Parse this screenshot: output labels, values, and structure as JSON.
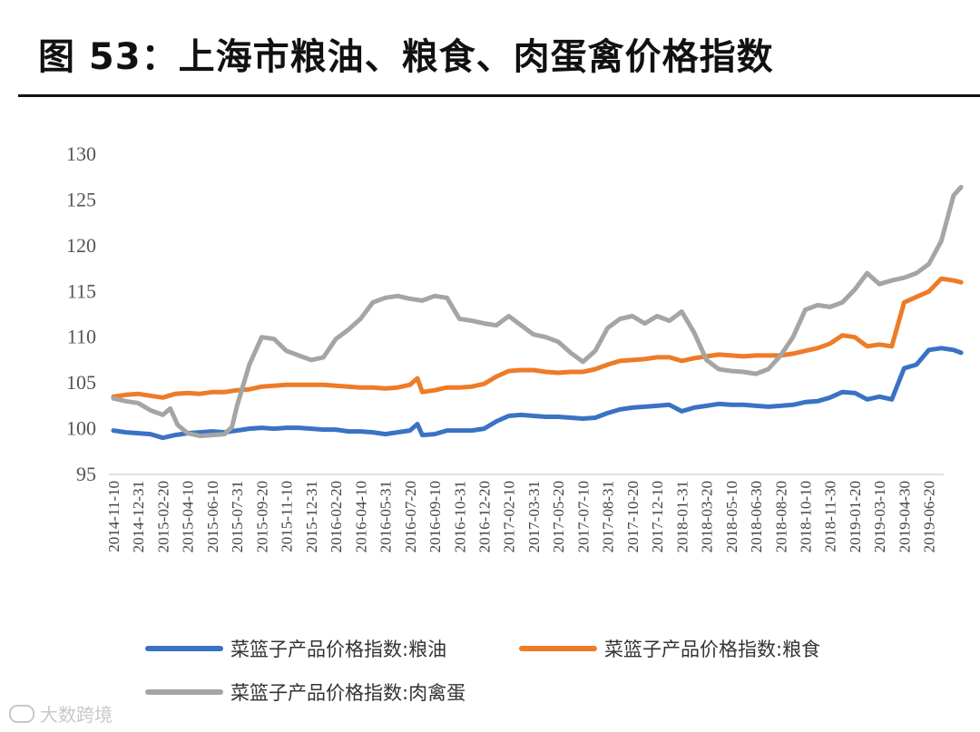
{
  "header": {
    "title": "图 53：上海市粮油、粮食、肉蛋禽价格指数"
  },
  "watermark": {
    "text": "大数跨境"
  },
  "chart_data": {
    "type": "line",
    "ylim": [
      95,
      130
    ],
    "yticks": [
      95,
      100,
      105,
      110,
      115,
      120,
      125,
      130
    ],
    "grid": false,
    "legend_position": "bottom",
    "x_tick_labels": [
      "2014-11-10",
      "2014-12-31",
      "2015-02-20",
      "2015-04-10",
      "2015-06-10",
      "2015-07-31",
      "2015-09-20",
      "2015-11-10",
      "2015-12-31",
      "2016-02-20",
      "2016-04-10",
      "2016-05-31",
      "2016-07-20",
      "2016-09-10",
      "2016-10-31",
      "2016-12-20",
      "2017-02-10",
      "2017-03-31",
      "2017-05-20",
      "2017-07-10",
      "2017-08-31",
      "2017-10-20",
      "2017-12-10",
      "2018-01-31",
      "2018-03-20",
      "2018-05-10",
      "2018-06-30",
      "2018-08-20",
      "2018-10-10",
      "2018-11-30",
      "2019-01-20",
      "2019-03-10",
      "2019-04-30",
      "2019-06-20"
    ],
    "series": [
      {
        "name": "菜篮子产品价格指数:粮油",
        "color": "#3a72c4",
        "points": [
          [
            0,
            99.8
          ],
          [
            0.5,
            99.6
          ],
          [
            1,
            99.5
          ],
          [
            1.5,
            99.4
          ],
          [
            2,
            99.0
          ],
          [
            2.5,
            99.3
          ],
          [
            3,
            99.5
          ],
          [
            3.5,
            99.6
          ],
          [
            4,
            99.7
          ],
          [
            4.5,
            99.6
          ],
          [
            5,
            99.8
          ],
          [
            5.5,
            100.0
          ],
          [
            6,
            100.1
          ],
          [
            6.5,
            100.0
          ],
          [
            7,
            100.1
          ],
          [
            7.5,
            100.1
          ],
          [
            8,
            100.0
          ],
          [
            8.5,
            99.9
          ],
          [
            9,
            99.9
          ],
          [
            9.5,
            99.7
          ],
          [
            10,
            99.7
          ],
          [
            10.5,
            99.6
          ],
          [
            11,
            99.4
          ],
          [
            11.5,
            99.6
          ],
          [
            12,
            99.8
          ],
          [
            12.3,
            100.5
          ],
          [
            12.5,
            99.3
          ],
          [
            13,
            99.4
          ],
          [
            13.5,
            99.8
          ],
          [
            14,
            99.8
          ],
          [
            14.5,
            99.8
          ],
          [
            15,
            100.0
          ],
          [
            15.5,
            100.8
          ],
          [
            16,
            101.4
          ],
          [
            16.5,
            101.5
          ],
          [
            17,
            101.4
          ],
          [
            17.5,
            101.3
          ],
          [
            18,
            101.3
          ],
          [
            18.5,
            101.2
          ],
          [
            19,
            101.1
          ],
          [
            19.5,
            101.2
          ],
          [
            20,
            101.7
          ],
          [
            20.5,
            102.1
          ],
          [
            21,
            102.3
          ],
          [
            21.5,
            102.4
          ],
          [
            22,
            102.5
          ],
          [
            22.5,
            102.6
          ],
          [
            23,
            101.9
          ],
          [
            23.5,
            102.3
          ],
          [
            24,
            102.5
          ],
          [
            24.5,
            102.7
          ],
          [
            25,
            102.6
          ],
          [
            25.5,
            102.6
          ],
          [
            26,
            102.5
          ],
          [
            26.5,
            102.4
          ],
          [
            27,
            102.5
          ],
          [
            27.5,
            102.6
          ],
          [
            28,
            102.9
          ],
          [
            28.5,
            103.0
          ],
          [
            29,
            103.4
          ],
          [
            29.5,
            104.0
          ],
          [
            30,
            103.9
          ],
          [
            30.5,
            103.2
          ],
          [
            31,
            103.5
          ],
          [
            31.5,
            103.2
          ],
          [
            32,
            106.6
          ],
          [
            32.5,
            107.0
          ],
          [
            33,
            108.6
          ],
          [
            33.5,
            108.8
          ],
          [
            34,
            108.6
          ],
          [
            34.3,
            108.3
          ]
        ]
      },
      {
        "name": "菜篮子产品价格指数:粮食",
        "color": "#ee7b28",
        "points": [
          [
            0,
            103.5
          ],
          [
            0.5,
            103.7
          ],
          [
            1,
            103.8
          ],
          [
            1.5,
            103.6
          ],
          [
            2,
            103.4
          ],
          [
            2.5,
            103.8
          ],
          [
            3,
            103.9
          ],
          [
            3.5,
            103.8
          ],
          [
            4,
            104.0
          ],
          [
            4.5,
            104.0
          ],
          [
            5,
            104.2
          ],
          [
            5.5,
            104.3
          ],
          [
            6,
            104.6
          ],
          [
            6.5,
            104.7
          ],
          [
            7,
            104.8
          ],
          [
            7.5,
            104.8
          ],
          [
            8,
            104.8
          ],
          [
            8.5,
            104.8
          ],
          [
            9,
            104.7
          ],
          [
            9.5,
            104.6
          ],
          [
            10,
            104.5
          ],
          [
            10.5,
            104.5
          ],
          [
            11,
            104.4
          ],
          [
            11.5,
            104.5
          ],
          [
            12,
            104.8
          ],
          [
            12.3,
            105.5
          ],
          [
            12.5,
            104.0
          ],
          [
            13,
            104.2
          ],
          [
            13.5,
            104.5
          ],
          [
            14,
            104.5
          ],
          [
            14.5,
            104.6
          ],
          [
            15,
            104.9
          ],
          [
            15.5,
            105.7
          ],
          [
            16,
            106.3
          ],
          [
            16.5,
            106.4
          ],
          [
            17,
            106.4
          ],
          [
            17.5,
            106.2
          ],
          [
            18,
            106.1
          ],
          [
            18.5,
            106.2
          ],
          [
            19,
            106.2
          ],
          [
            19.5,
            106.5
          ],
          [
            20,
            107.0
          ],
          [
            20.5,
            107.4
          ],
          [
            21,
            107.5
          ],
          [
            21.5,
            107.6
          ],
          [
            22,
            107.8
          ],
          [
            22.5,
            107.8
          ],
          [
            23,
            107.4
          ],
          [
            23.5,
            107.7
          ],
          [
            24,
            107.9
          ],
          [
            24.5,
            108.1
          ],
          [
            25,
            108.0
          ],
          [
            25.5,
            107.9
          ],
          [
            26,
            108.0
          ],
          [
            26.5,
            108.0
          ],
          [
            27,
            108.0
          ],
          [
            27.5,
            108.2
          ],
          [
            28,
            108.5
          ],
          [
            28.5,
            108.8
          ],
          [
            29,
            109.3
          ],
          [
            29.5,
            110.2
          ],
          [
            30,
            110.0
          ],
          [
            30.5,
            109.0
          ],
          [
            31,
            109.2
          ],
          [
            31.5,
            109.0
          ],
          [
            32,
            113.8
          ],
          [
            32.5,
            114.4
          ],
          [
            33,
            115.0
          ],
          [
            33.5,
            116.4
          ],
          [
            34,
            116.2
          ],
          [
            34.3,
            116.0
          ]
        ]
      },
      {
        "name": "菜篮子产品价格指数:肉禽蛋",
        "color": "#a5a5a5",
        "points": [
          [
            0,
            103.3
          ],
          [
            0.5,
            103.0
          ],
          [
            1,
            102.8
          ],
          [
            1.5,
            102.0
          ],
          [
            2,
            101.5
          ],
          [
            2.3,
            102.2
          ],
          [
            2.6,
            100.4
          ],
          [
            3,
            99.5
          ],
          [
            3.5,
            99.2
          ],
          [
            4,
            99.3
          ],
          [
            4.5,
            99.4
          ],
          [
            4.8,
            100.2
          ],
          [
            5,
            102.5
          ],
          [
            5.5,
            107.0
          ],
          [
            6,
            110.0
          ],
          [
            6.5,
            109.8
          ],
          [
            7,
            108.5
          ],
          [
            7.5,
            108.0
          ],
          [
            8,
            107.5
          ],
          [
            8.5,
            107.8
          ],
          [
            9,
            109.8
          ],
          [
            9.5,
            110.8
          ],
          [
            10,
            112.0
          ],
          [
            10.5,
            113.8
          ],
          [
            11,
            114.3
          ],
          [
            11.5,
            114.5
          ],
          [
            12,
            114.2
          ],
          [
            12.5,
            114.0
          ],
          [
            13,
            114.5
          ],
          [
            13.5,
            114.3
          ],
          [
            14,
            112.0
          ],
          [
            14.5,
            111.8
          ],
          [
            15,
            111.5
          ],
          [
            15.5,
            111.3
          ],
          [
            16,
            112.3
          ],
          [
            16.5,
            111.3
          ],
          [
            17,
            110.3
          ],
          [
            17.5,
            110.0
          ],
          [
            18,
            109.5
          ],
          [
            18.5,
            108.3
          ],
          [
            19,
            107.3
          ],
          [
            19.5,
            108.5
          ],
          [
            20,
            111.0
          ],
          [
            20.5,
            112.0
          ],
          [
            21,
            112.3
          ],
          [
            21.5,
            111.5
          ],
          [
            22,
            112.3
          ],
          [
            22.5,
            111.8
          ],
          [
            23,
            112.8
          ],
          [
            23.5,
            110.5
          ],
          [
            24,
            107.5
          ],
          [
            24.5,
            106.5
          ],
          [
            25,
            106.3
          ],
          [
            25.5,
            106.2
          ],
          [
            26,
            106.0
          ],
          [
            26.5,
            106.5
          ],
          [
            27,
            108.0
          ],
          [
            27.5,
            110.0
          ],
          [
            28,
            113.0
          ],
          [
            28.5,
            113.5
          ],
          [
            29,
            113.3
          ],
          [
            29.5,
            113.8
          ],
          [
            30,
            115.2
          ],
          [
            30.5,
            117.0
          ],
          [
            31,
            115.8
          ],
          [
            31.5,
            116.2
          ],
          [
            32,
            116.5
          ],
          [
            32.5,
            117.0
          ],
          [
            33,
            118.0
          ],
          [
            33.5,
            120.5
          ],
          [
            34,
            125.5
          ],
          [
            34.3,
            126.4
          ]
        ]
      }
    ]
  }
}
